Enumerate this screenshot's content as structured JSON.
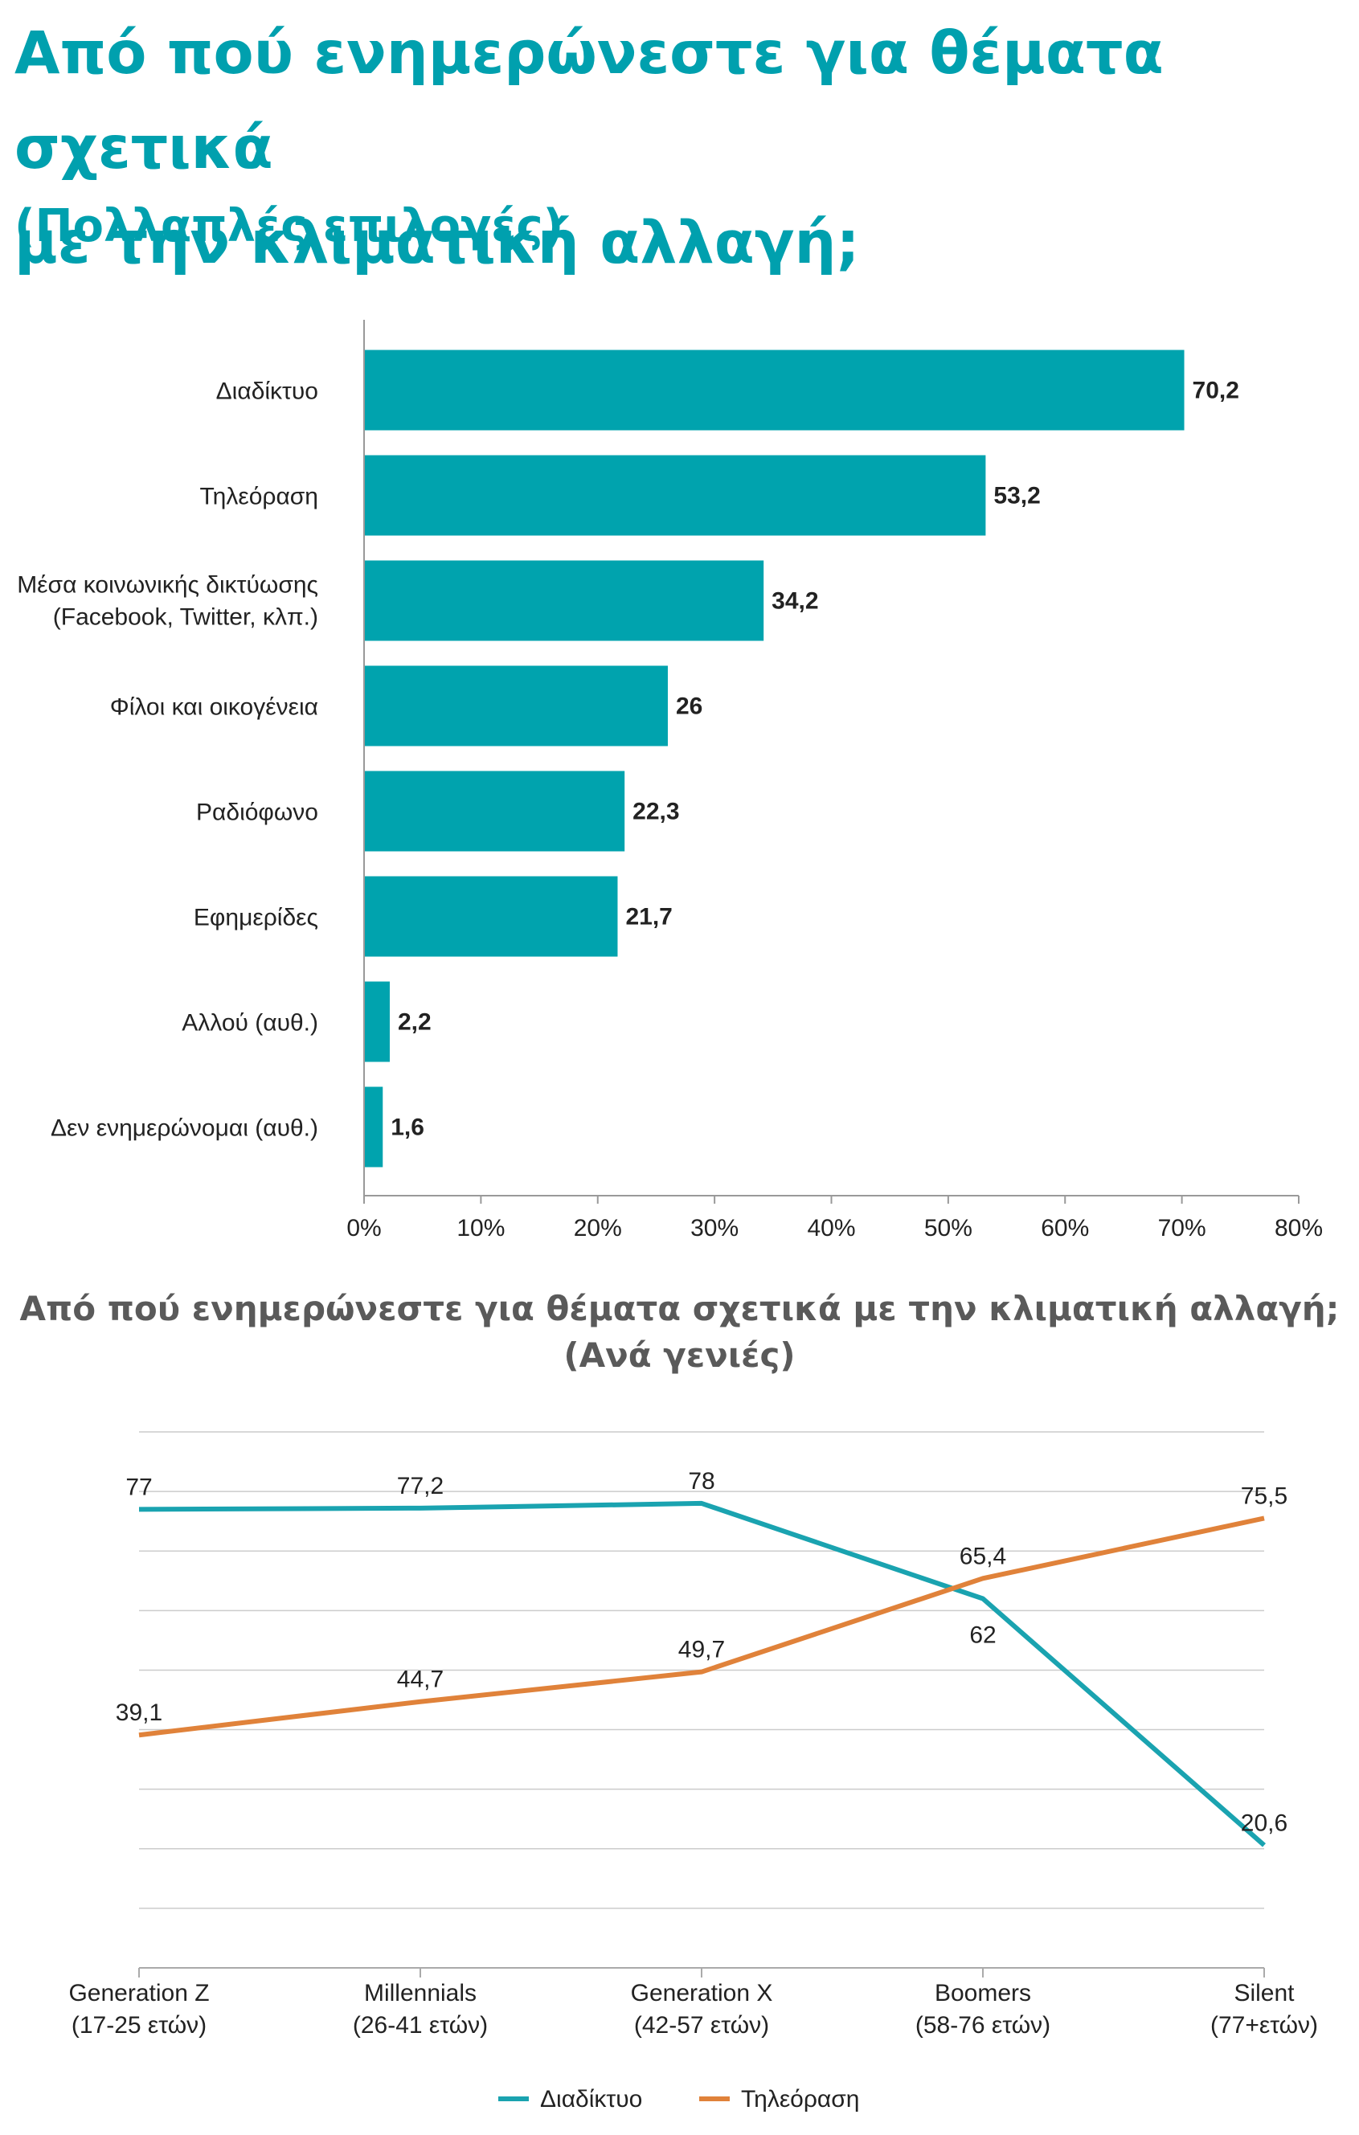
{
  "title_line1": "Από πού ενημερώνεστε για θέματα σχετικά",
  "title_line2": "με την κλιματική αλλαγή;",
  "subtitle": "(Πολλαπλές επιλογές)",
  "colors": {
    "title": "#00A0AE",
    "bar": "#00A3AE",
    "internet": "#1AA3B0",
    "tv": "#E0823A",
    "grid": "#cccccc",
    "text": "#222222"
  },
  "chart_data": [
    {
      "type": "bar",
      "orientation": "horizontal",
      "title": "Από πού ενημερώνεστε για θέματα σχετικά με την κλιματική αλλαγή;",
      "subtitle": "(Πολλαπλές επιλογές)",
      "categories": [
        [
          "Διαδίκτυο"
        ],
        [
          "Τηλεόραση"
        ],
        [
          "Μέσα κοινωνικής δικτύωσης",
          "(Facebook, Twitter, κλπ.)"
        ],
        [
          "Φίλοι και οικογένεια"
        ],
        [
          "Ραδιόφωνο"
        ],
        [
          "Εφημερίδες"
        ],
        [
          "Αλλού (αυθ.)"
        ],
        [
          "Δεν ενημερώνομαι (αυθ.)"
        ]
      ],
      "values": [
        70.2,
        53.2,
        34.2,
        26,
        22.3,
        21.7,
        2.2,
        1.6
      ],
      "value_labels": [
        "70,2",
        "53,2",
        "34,2",
        "26",
        "22,3",
        "21,7",
        "2,2",
        "1,6"
      ],
      "xlim": [
        0,
        80
      ],
      "xticks": [
        "0%",
        "10%",
        "20%",
        "30%",
        "40%",
        "50%",
        "60%",
        "70%",
        "80%"
      ],
      "grid": false
    },
    {
      "type": "line",
      "title_line1": "Από πού ενημερώνεστε για θέματα σχετικά με την κλιματική αλλαγή;",
      "title_line2": "(Ανά γενιές)",
      "categories": [
        [
          "Generation Z",
          "(17-25 ετών)"
        ],
        [
          "Millennials",
          "(26-41 ετών)"
        ],
        [
          "Generation X",
          "(42-57 ετών)"
        ],
        [
          "Boomers",
          "(58-76 ετών)"
        ],
        [
          "Silent",
          "(77+ετών)"
        ]
      ],
      "ylim": [
        0,
        90
      ],
      "grid": true,
      "legend_position": "bottom-center",
      "series": [
        {
          "name": "Διαδίκτυο",
          "values": [
            77,
            77.2,
            78,
            62,
            20.6
          ],
          "labels": [
            "77",
            "77,2",
            "78",
            "62",
            "20,6"
          ],
          "label_position": [
            "above",
            "above",
            "above",
            "below",
            "above"
          ]
        },
        {
          "name": "Τηλεόραση",
          "values": [
            39.1,
            44.7,
            49.7,
            65.4,
            75.5
          ],
          "labels": [
            "39,1",
            "44,7",
            "49,7",
            "65,4",
            "75,5"
          ],
          "label_position": [
            "above",
            "above",
            "above",
            "above",
            "above"
          ]
        }
      ]
    }
  ]
}
